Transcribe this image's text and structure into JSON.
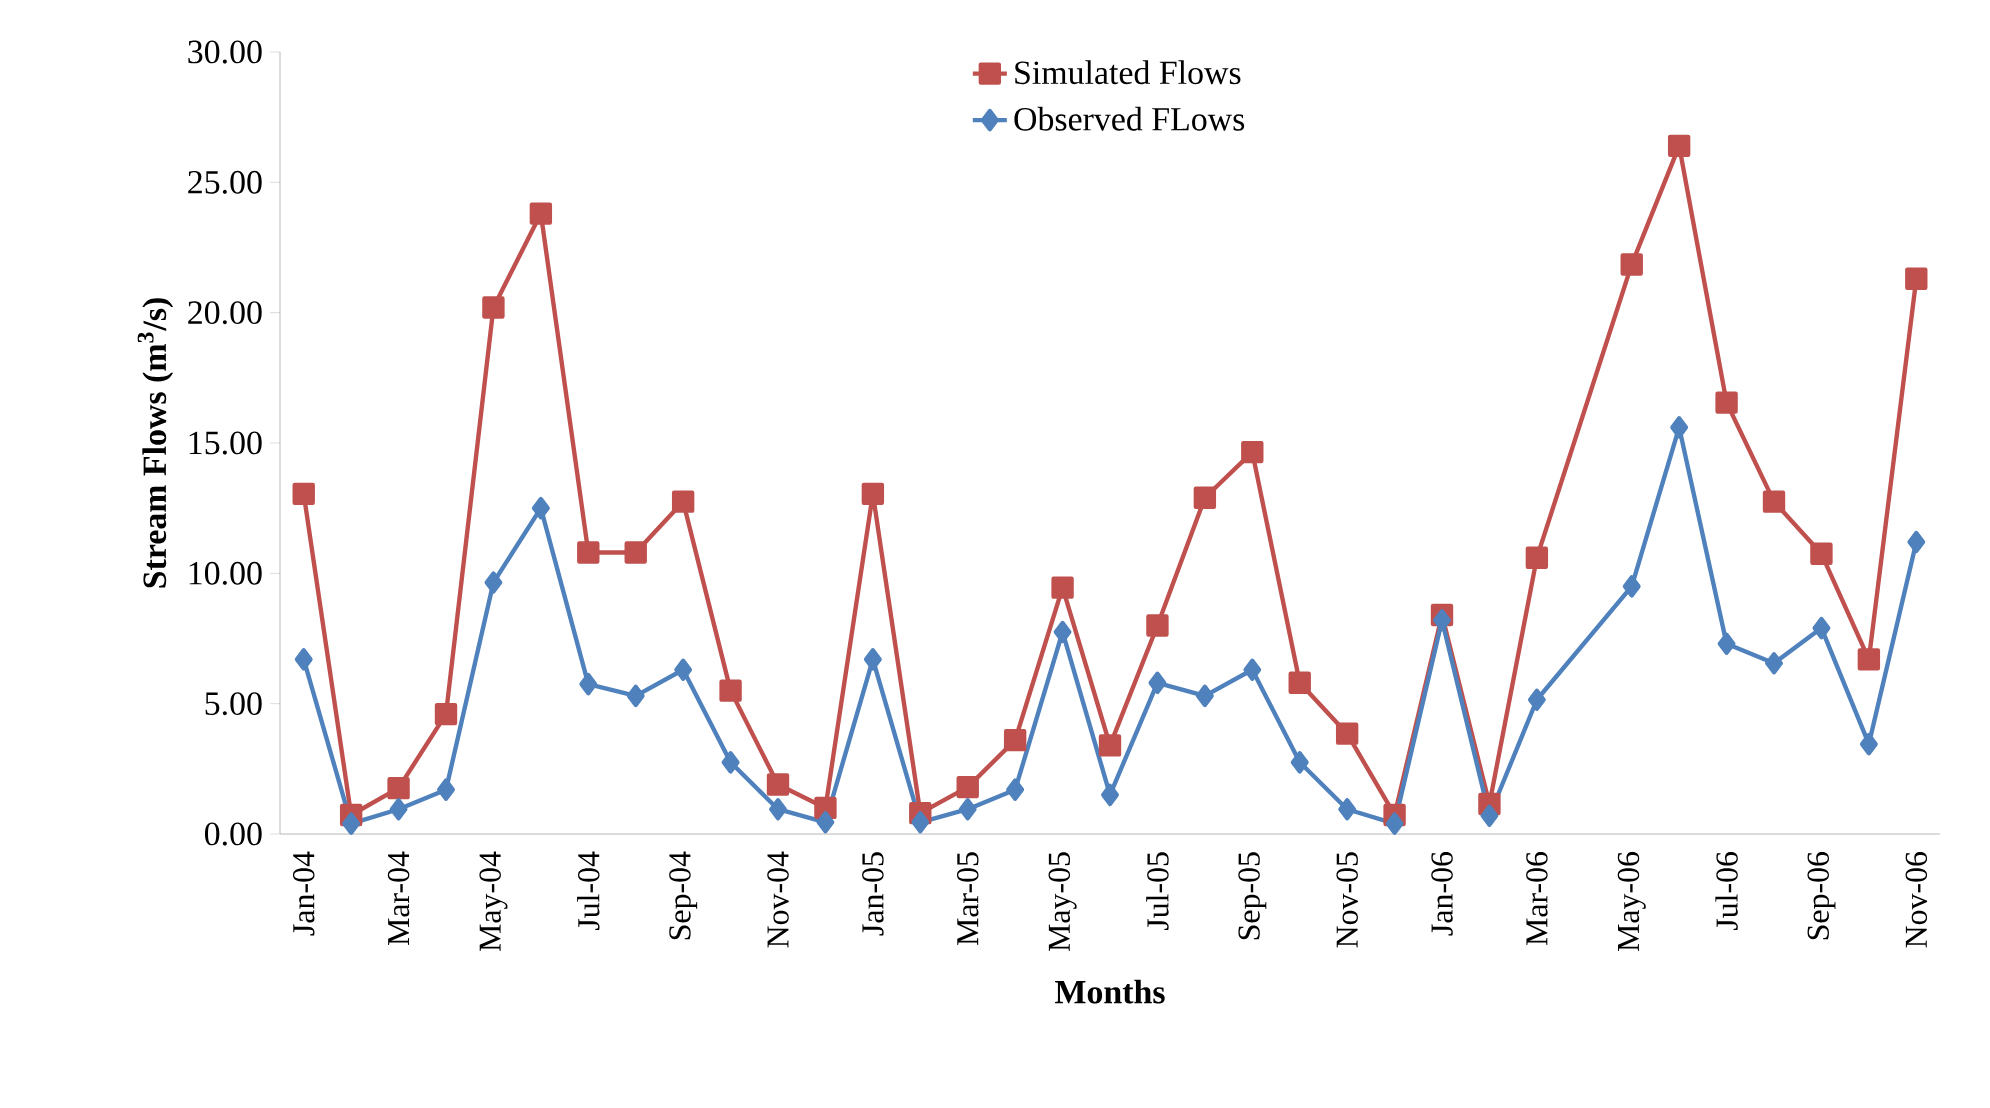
{
  "chart_data": {
    "type": "line",
    "xlabel": "Months",
    "ylabel": "Stream  Flows (m$^{3}$/s)",
    "categories": [
      "Jan-04",
      null,
      "Mar-04",
      null,
      "May-04",
      null,
      "Jul-04",
      null,
      "Sep-04",
      null,
      "Nov-04",
      null,
      "Jan-05",
      null,
      "Mar-05",
      null,
      "May-05",
      null,
      "Jul-05",
      null,
      "Sep-05",
      null,
      "Nov-05",
      null,
      "Jan-06",
      null,
      "Mar-06",
      null,
      "May-06",
      null,
      "Jul-06",
      null,
      "Sep-06",
      null,
      "Nov-06"
    ],
    "series": [
      {
        "name": "Simulated Flows",
        "color": "#c0504d",
        "marker": "square",
        "values": [
          13.05,
          0.73,
          1.76,
          4.6,
          20.2,
          23.8,
          10.8,
          10.8,
          12.75,
          5.5,
          1.9,
          1.0,
          13.05,
          0.8,
          1.8,
          3.6,
          9.45,
          3.4,
          8.0,
          12.9,
          14.65,
          5.8,
          3.85,
          0.73,
          8.4,
          1.15,
          10.6,
          null,
          21.85,
          26.4,
          16.55,
          12.75,
          10.75,
          6.7,
          21.3
        ]
      },
      {
        "name": "Observed FLows",
        "color": "#4f81bd",
        "marker": "diamond",
        "values": [
          6.7,
          0.4,
          0.95,
          1.7,
          9.65,
          12.5,
          5.75,
          5.3,
          6.3,
          2.75,
          0.95,
          0.45,
          6.7,
          0.45,
          0.95,
          1.7,
          7.75,
          1.5,
          5.8,
          5.3,
          6.3,
          2.75,
          0.95,
          0.4,
          8.2,
          0.7,
          5.15,
          null,
          9.5,
          15.6,
          7.3,
          6.55,
          7.9,
          3.45,
          11.2
        ]
      }
    ],
    "ylim": [
      0,
      30
    ],
    "yticks": [
      {
        "value": 0,
        "label": "0.00"
      },
      {
        "value": 5,
        "label": "5.00"
      },
      {
        "value": 10,
        "label": "10.00"
      },
      {
        "value": 15,
        "label": "15.00"
      },
      {
        "value": 20,
        "label": "20.00"
      },
      {
        "value": 25,
        "label": "25.00"
      },
      {
        "value": 30,
        "label": "30.00"
      }
    ],
    "legend": "top",
    "grid": false,
    "line_style": "solid"
  }
}
